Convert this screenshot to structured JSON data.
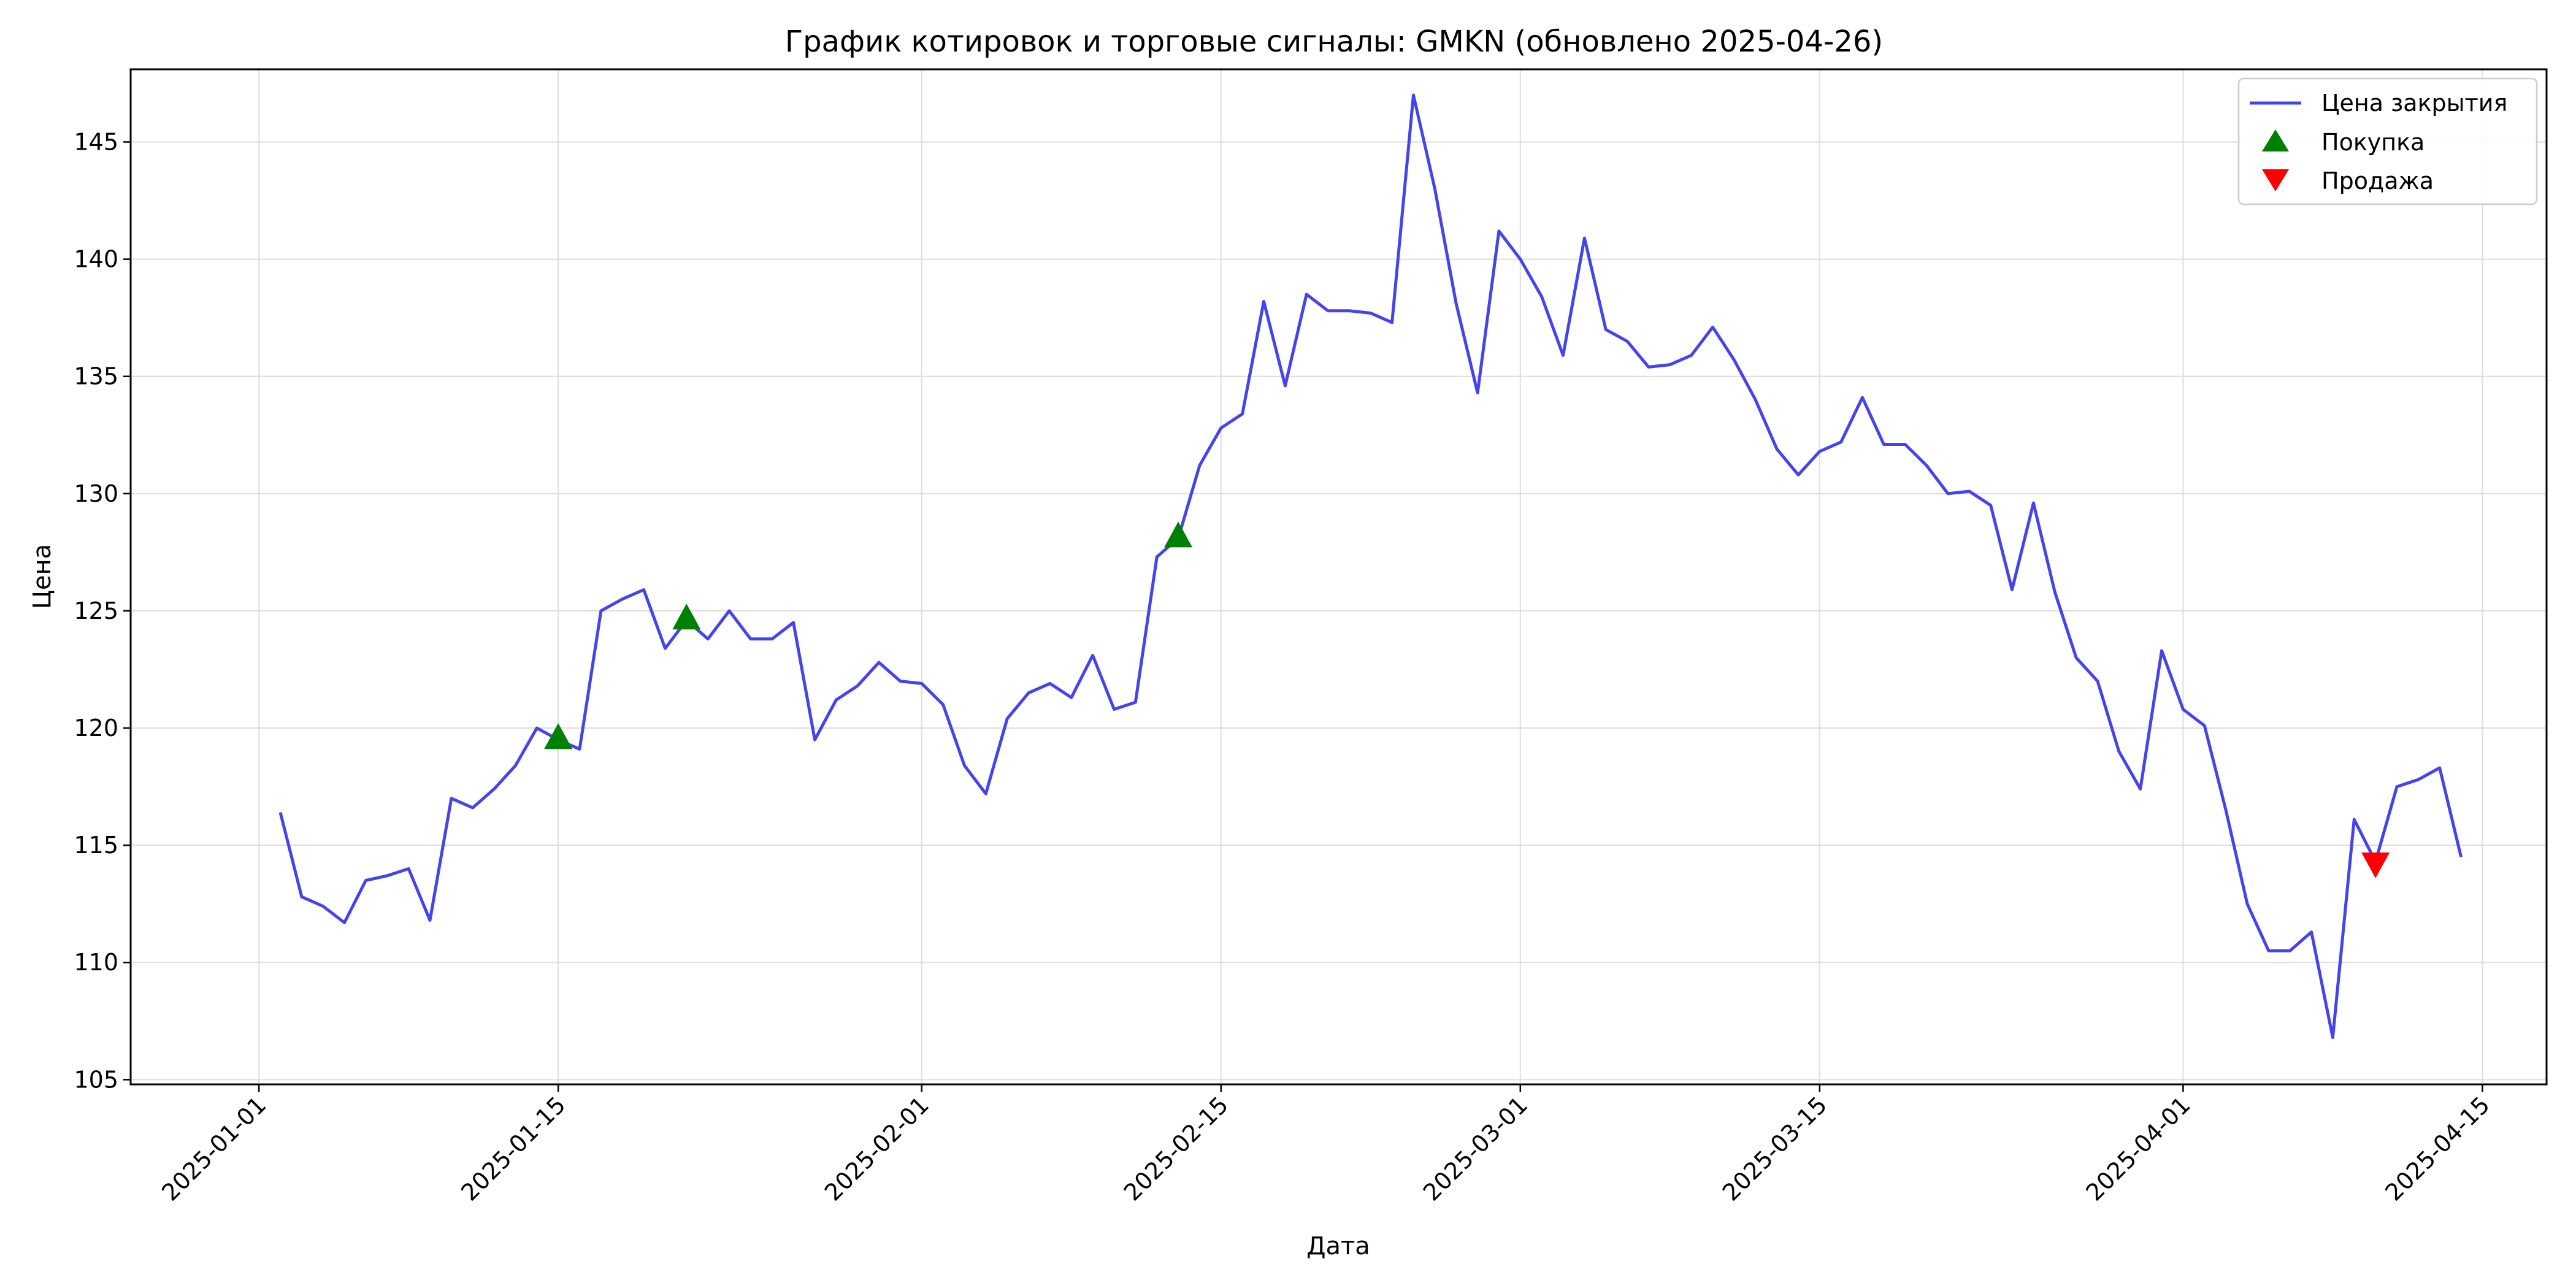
{
  "chart_data": {
    "type": "line",
    "title": "График котировок и торговые сигналы: GMKN (обновлено 2025-04-26)",
    "xlabel": "Дата",
    "ylabel": "Цена",
    "xlim": [
      "2024-12-26",
      "2025-04-18"
    ],
    "ylim": [
      104.8,
      148.1
    ],
    "grid": true,
    "legend_position": "top-right",
    "x_ticks": [
      "2025-01-01",
      "2025-01-15",
      "2025-02-01",
      "2025-02-15",
      "2025-03-01",
      "2025-03-15",
      "2025-04-01",
      "2025-04-15"
    ],
    "y_ticks": [
      105,
      110,
      115,
      120,
      125,
      130,
      135,
      140,
      145
    ],
    "series": [
      {
        "name": "Цена закрытия",
        "color": "#4444ee",
        "points": [
          [
            "2025-01-02",
            116.4
          ],
          [
            "2025-01-03",
            112.8
          ],
          [
            "2025-01-04",
            112.4
          ],
          [
            "2025-01-05",
            111.7
          ],
          [
            "2025-01-06",
            113.5
          ],
          [
            "2025-01-07",
            113.7
          ],
          [
            "2025-01-08",
            114.0
          ],
          [
            "2025-01-09",
            111.8
          ],
          [
            "2025-01-10",
            117.0
          ],
          [
            "2025-01-11",
            116.6
          ],
          [
            "2025-01-12",
            117.4
          ],
          [
            "2025-01-13",
            118.4
          ],
          [
            "2025-01-14",
            120.0
          ],
          [
            "2025-01-15",
            119.5
          ],
          [
            "2025-01-16",
            119.1
          ],
          [
            "2025-01-17",
            125.0
          ],
          [
            "2025-01-18",
            125.5
          ],
          [
            "2025-01-19",
            125.9
          ],
          [
            "2025-01-20",
            123.4
          ],
          [
            "2025-01-21",
            124.6
          ],
          [
            "2025-01-22",
            123.8
          ],
          [
            "2025-01-23",
            125.0
          ],
          [
            "2025-01-24",
            123.8
          ],
          [
            "2025-01-25",
            123.8
          ],
          [
            "2025-01-26",
            124.5
          ],
          [
            "2025-01-27",
            119.5
          ],
          [
            "2025-01-28",
            121.2
          ],
          [
            "2025-01-29",
            121.8
          ],
          [
            "2025-01-30",
            122.8
          ],
          [
            "2025-01-31",
            122.0
          ],
          [
            "2025-02-01",
            121.9
          ],
          [
            "2025-02-02",
            121.0
          ],
          [
            "2025-02-03",
            118.4
          ],
          [
            "2025-02-04",
            117.2
          ],
          [
            "2025-02-05",
            120.4
          ],
          [
            "2025-02-06",
            121.5
          ],
          [
            "2025-02-07",
            121.9
          ],
          [
            "2025-02-08",
            121.3
          ],
          [
            "2025-02-09",
            123.1
          ],
          [
            "2025-02-10",
            120.8
          ],
          [
            "2025-02-11",
            121.1
          ],
          [
            "2025-02-12",
            127.3
          ],
          [
            "2025-02-13",
            128.1
          ],
          [
            "2025-02-14",
            131.2
          ],
          [
            "2025-02-15",
            132.8
          ],
          [
            "2025-02-16",
            133.4
          ],
          [
            "2025-02-17",
            138.2
          ],
          [
            "2025-02-18",
            134.6
          ],
          [
            "2025-02-19",
            138.5
          ],
          [
            "2025-02-20",
            137.8
          ],
          [
            "2025-02-21",
            137.8
          ],
          [
            "2025-02-22",
            137.7
          ],
          [
            "2025-02-23",
            137.3
          ],
          [
            "2025-02-24",
            147.0
          ],
          [
            "2025-02-25",
            143.0
          ],
          [
            "2025-02-26",
            138.1
          ],
          [
            "2025-02-27",
            134.3
          ],
          [
            "2025-02-28",
            141.2
          ],
          [
            "2025-03-01",
            140.0
          ],
          [
            "2025-03-02",
            138.4
          ],
          [
            "2025-03-03",
            135.9
          ],
          [
            "2025-03-04",
            140.9
          ],
          [
            "2025-03-05",
            137.0
          ],
          [
            "2025-03-06",
            136.5
          ],
          [
            "2025-03-07",
            135.4
          ],
          [
            "2025-03-08",
            135.5
          ],
          [
            "2025-03-09",
            135.9
          ],
          [
            "2025-03-10",
            137.1
          ],
          [
            "2025-03-11",
            135.7
          ],
          [
            "2025-03-12",
            134.0
          ],
          [
            "2025-03-13",
            131.9
          ],
          [
            "2025-03-14",
            130.8
          ],
          [
            "2025-03-15",
            131.8
          ],
          [
            "2025-03-16",
            132.2
          ],
          [
            "2025-03-17",
            134.1
          ],
          [
            "2025-03-18",
            132.1
          ],
          [
            "2025-03-19",
            132.1
          ],
          [
            "2025-03-20",
            131.2
          ],
          [
            "2025-03-21",
            130.0
          ],
          [
            "2025-03-22",
            130.1
          ],
          [
            "2025-03-23",
            129.5
          ],
          [
            "2025-03-24",
            125.9
          ],
          [
            "2025-03-25",
            129.6
          ],
          [
            "2025-03-26",
            125.8
          ],
          [
            "2025-03-27",
            123.0
          ],
          [
            "2025-03-28",
            122.0
          ],
          [
            "2025-03-29",
            119.0
          ],
          [
            "2025-03-30",
            117.4
          ],
          [
            "2025-03-31",
            123.3
          ],
          [
            "2025-04-01",
            120.8
          ],
          [
            "2025-04-02",
            120.1
          ],
          [
            "2025-04-03",
            116.5
          ],
          [
            "2025-04-04",
            112.5
          ],
          [
            "2025-04-05",
            110.5
          ],
          [
            "2025-04-06",
            110.5
          ],
          [
            "2025-04-07",
            111.3
          ],
          [
            "2025-04-08",
            106.8
          ],
          [
            "2025-04-09",
            116.1
          ],
          [
            "2025-04-10",
            114.3
          ],
          [
            "2025-04-11",
            117.5
          ],
          [
            "2025-04-12",
            117.8
          ],
          [
            "2025-04-13",
            118.3
          ],
          [
            "2025-04-14",
            114.5
          ]
        ]
      },
      {
        "name": "Покупка",
        "type": "scatter",
        "marker": "triangle-up",
        "color": "#008000",
        "points": [
          [
            "2025-01-15",
            119.5
          ],
          [
            "2025-01-21",
            124.6
          ],
          [
            "2025-02-13",
            128.1
          ]
        ]
      },
      {
        "name": "Продажа",
        "type": "scatter",
        "marker": "triangle-down",
        "color": "#ff0000",
        "points": [
          [
            "2025-04-10",
            114.3
          ]
        ]
      }
    ]
  }
}
